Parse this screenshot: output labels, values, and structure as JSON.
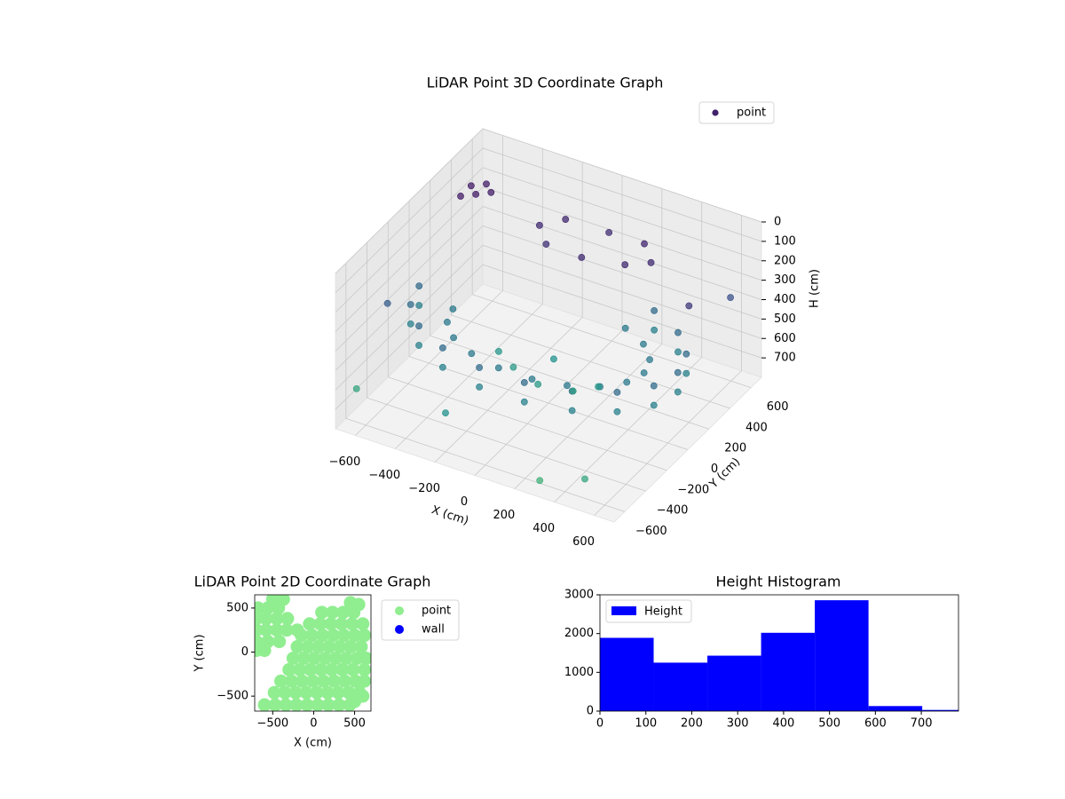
{
  "chart_data": [
    {
      "type": "scatter3d",
      "title": "LiDAR Point 3D Coordinate Graph",
      "xlabel": "X (cm)",
      "ylabel": "Y (cm)",
      "zlabel": "H (cm)",
      "xlim": [
        -700,
        700
      ],
      "ylim": [
        -700,
        700
      ],
      "zlim": [
        0,
        800
      ],
      "z_inverted": true,
      "xticks": [
        {
          "value": -600,
          "label": "−600"
        },
        {
          "value": -400,
          "label": "−400"
        },
        {
          "value": -200,
          "label": "−200"
        },
        0,
        200,
        400,
        600
      ],
      "yticks": [
        {
          "value": -600,
          "label": "−600"
        },
        {
          "value": -400,
          "label": "−400"
        },
        {
          "value": -200,
          "label": "−200"
        },
        0,
        200,
        400,
        600
      ],
      "zticks": [
        0,
        100,
        200,
        300,
        400,
        500,
        600,
        700
      ],
      "grid": true,
      "legend": "upper right",
      "colormap": [
        "#440154",
        "#3b528b",
        "#21918c",
        "#5ec962",
        "#fde725"
      ],
      "color_range": [
        0,
        1200
      ],
      "series": [
        {
          "name": "point",
          "x": [
            -650,
            -611,
            -498,
            -325,
            -113,
            113,
            325,
            498,
            611,
            650,
            611,
            498,
            325,
            -650,
            -611,
            -498,
            -325,
            -113,
            113,
            325,
            498,
            611,
            650,
            611,
            498,
            325,
            -480,
            -451,
            -368,
            -240,
            -84,
            84,
            240,
            368,
            451,
            480,
            451,
            368,
            240,
            330,
            248,
            50,
            -148,
            -230,
            -148,
            50,
            248,
            0,
            -150,
            150,
            -250,
            250,
            0,
            -600,
            -550,
            -500,
            -600,
            -550,
            -700,
            -650,
            300,
            650,
            -200,
            500,
            600
          ],
          "y": [
            0,
            -154,
            -289,
            -390,
            -443,
            -443,
            -390,
            -289,
            -154,
            0,
            154,
            289,
            390,
            0,
            -154,
            -289,
            -390,
            -443,
            -443,
            -390,
            -289,
            -154,
            0,
            154,
            289,
            390,
            0,
            -109,
            -206,
            -277,
            -315,
            -315,
            -277,
            -206,
            -109,
            0,
            109,
            206,
            277,
            350,
            442,
            480,
            442,
            350,
            258,
            220,
            258,
            -100,
            -50,
            -50,
            0,
            0,
            50,
            300,
            350,
            400,
            400,
            450,
            -500,
            -300,
            -650,
            500,
            -600,
            -600,
            200
          ],
          "z": [
            420,
            420,
            420,
            420,
            420,
            420,
            420,
            420,
            420,
            420,
            420,
            420,
            420,
            520,
            520,
            520,
            520,
            520,
            520,
            520,
            520,
            520,
            520,
            520,
            520,
            520,
            480,
            480,
            480,
            480,
            480,
            480,
            480,
            480,
            480,
            480,
            480,
            480,
            480,
            150,
            130,
            160,
            140,
            150,
            170,
            150,
            140,
            650,
            640,
            660,
            620,
            630,
            600,
            100,
            100,
            100,
            100,
            100,
            700,
            350,
            750,
            300,
            600,
            700,
            200
          ]
        }
      ]
    },
    {
      "type": "scatter",
      "title": "LiDAR Point 2D Coordinate Graph",
      "xlabel": "X (cm)",
      "ylabel": "Y (cm)",
      "xlim": [
        -720,
        700
      ],
      "ylim": [
        -670,
        650
      ],
      "xticks": [
        {
          "value": -500,
          "label": "−500"
        },
        0,
        500
      ],
      "yticks": [
        {
          "value": -500,
          "label": "−500"
        },
        0,
        500
      ],
      "legend": "outside right",
      "series": [
        {
          "name": "point",
          "color": "#90ee90",
          "x": [
            100,
            230,
            360,
            490,
            -50,
            80,
            210,
            340,
            470,
            600,
            -150,
            -20,
            110,
            240,
            370,
            500,
            620,
            -200,
            -70,
            60,
            190,
            320,
            450,
            580,
            -250,
            -120,
            10,
            140,
            270,
            400,
            530,
            640,
            -300,
            -170,
            -40,
            90,
            220,
            350,
            480,
            620,
            -400,
            -270,
            -140,
            -10,
            120,
            250,
            380,
            510,
            620,
            -480,
            -350,
            -220,
            -90,
            40,
            170,
            300,
            430,
            560,
            -600,
            -470,
            -340,
            -210,
            -80,
            50,
            180,
            310,
            440,
            -500,
            -370,
            -680,
            -560,
            -430,
            -700,
            -580,
            -450,
            -320,
            -700,
            -580,
            -450,
            -330,
            -200,
            -700,
            -560,
            -420,
            -700,
            -600,
            500,
            600,
            450,
            550
          ],
          "y": [
            450,
            450,
            450,
            450,
            320,
            320,
            320,
            320,
            320,
            320,
            190,
            190,
            190,
            190,
            190,
            190,
            190,
            60,
            60,
            60,
            60,
            60,
            60,
            60,
            -70,
            -70,
            -70,
            -70,
            -70,
            -70,
            -70,
            -70,
            -200,
            -200,
            -200,
            -200,
            -200,
            -200,
            -200,
            -200,
            -330,
            -330,
            -330,
            -330,
            -330,
            -330,
            -330,
            -330,
            -330,
            -460,
            -460,
            -460,
            -460,
            -460,
            -460,
            -460,
            -460,
            -460,
            -600,
            -600,
            -600,
            -600,
            -600,
            -600,
            -600,
            -600,
            -600,
            600,
            600,
            500,
            500,
            500,
            380,
            380,
            380,
            380,
            250,
            250,
            250,
            250,
            250,
            120,
            120,
            120,
            20,
            20,
            -560,
            -500,
            560,
            540
          ]
        },
        {
          "name": "wall",
          "color": "#0000ff",
          "x": [],
          "y": []
        }
      ]
    },
    {
      "type": "histogram",
      "title": "Height Histogram",
      "name": "Height",
      "color": "#0000ff",
      "bins": [
        0,
        117,
        234,
        351,
        468,
        585,
        702,
        819
      ],
      "counts": [
        1890,
        1250,
        1430,
        2020,
        2860,
        130,
        30
      ],
      "xlim": [
        0,
        781
      ],
      "ylim": [
        0,
        3000
      ],
      "xticks": [
        0,
        100,
        200,
        300,
        400,
        500,
        600,
        700
      ],
      "yticks": [
        0,
        1000,
        2000,
        3000
      ],
      "legend": "upper left"
    }
  ]
}
